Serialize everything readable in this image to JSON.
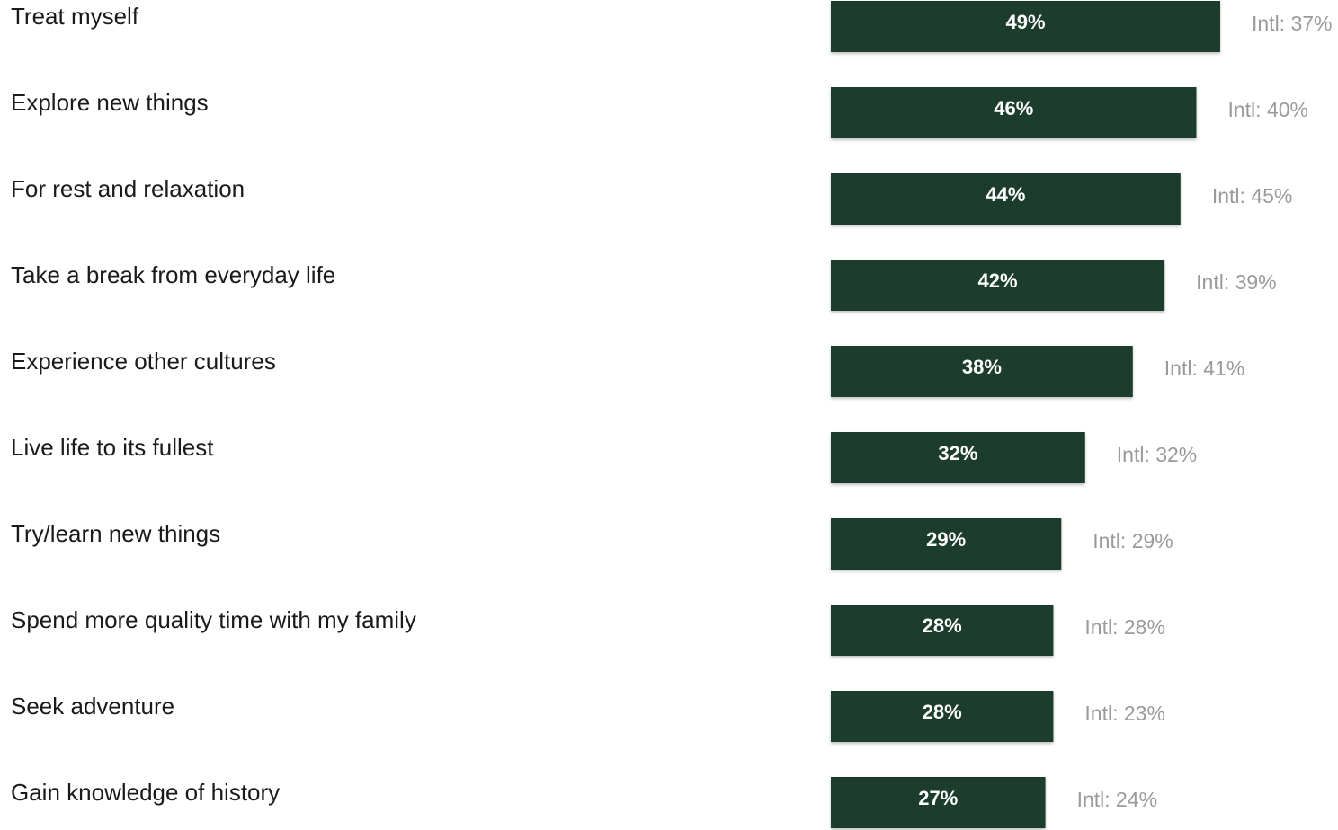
{
  "chart_data": {
    "type": "bar",
    "orientation": "horizontal",
    "title": "",
    "xlabel": "",
    "ylabel": "",
    "xlim": [
      0,
      49
    ],
    "grid": false,
    "legend": "none",
    "bar_color": "#1b3d2d",
    "categories": [
      "Treat myself",
      "Explore new things",
      "For rest and relaxation",
      "Take a break from everyday life",
      "Experience other cultures",
      "Live life to its fullest",
      "Try/learn new things",
      "Spend more quality time with my family",
      "Seek adventure",
      "Gain knowledge of history"
    ],
    "values": [
      49,
      46,
      44,
      42,
      38,
      32,
      29,
      28,
      28,
      27
    ],
    "value_labels": [
      "49%",
      "46%",
      "44%",
      "42%",
      "38%",
      "32%",
      "29%",
      "28%",
      "28%",
      "27%"
    ],
    "comparison_values": [
      37,
      40,
      45,
      39,
      41,
      32,
      29,
      28,
      23,
      24
    ],
    "comparison_labels": [
      "Intl: 37%",
      "Intl: 40%",
      "Intl: 45%",
      "Intl: 39%",
      "Intl: 41%",
      "Intl: 32%",
      "Intl: 29%",
      "Intl: 28%",
      "Intl: 23%",
      "Intl: 24%"
    ]
  }
}
